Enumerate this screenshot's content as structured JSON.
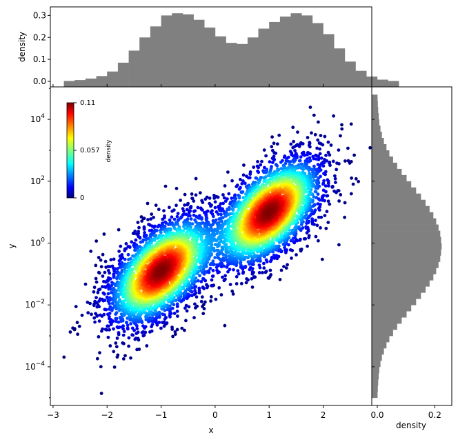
{
  "chart_data": [
    {
      "panel": "joint",
      "type": "scatter",
      "xlabel": "x",
      "ylabel": "y",
      "xlim": [
        -3.05,
        2.9
      ],
      "ylim_log10": [
        -5.25,
        5.05
      ],
      "y_scale": "log",
      "grid": false,
      "x_ticks": [
        "−3",
        "−2",
        "−1",
        "0",
        "1",
        "2"
      ],
      "y_ticks": [
        {
          "base": "10",
          "exp": "4",
          "log": 4
        },
        {
          "base": "10",
          "exp": "2",
          "log": 2
        },
        {
          "base": "10",
          "exp": "0",
          "log": 0
        },
        {
          "base": "10",
          "exp": "−2",
          "log": -2
        },
        {
          "base": "10",
          "exp": "−4",
          "log": -4
        }
      ],
      "clusters": [
        {
          "center_x": -1.0,
          "center_log10_y": -0.9,
          "sd_x": 0.5,
          "sd_log10_y": 0.9,
          "points": 3200
        },
        {
          "center_x": 1.0,
          "center_log10_y": 1.0,
          "sd_x": 0.5,
          "sd_log10_y": 0.9,
          "points": 3200
        }
      ],
      "colormap": "jet",
      "colorbar": {
        "title": "density",
        "ticks": [
          "0.11",
          "0.057",
          "0"
        ],
        "range": [
          0,
          0.11
        ]
      }
    },
    {
      "panel": "x-marginal",
      "type": "bar",
      "ylabel": "density",
      "ylim": [
        0,
        0.32
      ],
      "y_ticks": [
        "0.0",
        "0.1",
        "0.2",
        "0.3"
      ],
      "bin_start": -2.8,
      "bin_width": 0.2,
      "values": [
        0.002,
        0.006,
        0.013,
        0.024,
        0.045,
        0.085,
        0.14,
        0.2,
        0.25,
        0.3,
        0.31,
        0.305,
        0.28,
        0.245,
        0.205,
        0.175,
        0.17,
        0.2,
        0.24,
        0.27,
        0.295,
        0.31,
        0.3,
        0.265,
        0.215,
        0.15,
        0.09,
        0.048,
        0.022,
        0.008,
        0.002
      ]
    },
    {
      "panel": "y-marginal",
      "type": "bar",
      "orientation": "horizontal",
      "xlabel": "density",
      "xlim": [
        0,
        0.24
      ],
      "x_ticks": [
        "0.0",
        "0.2"
      ],
      "bin_start_log10": -5.0,
      "bin_width_log10": 0.2,
      "values": [
        0.001,
        0.002,
        0.003,
        0.005,
        0.007,
        0.011,
        0.016,
        0.023,
        0.032,
        0.042,
        0.055,
        0.069,
        0.085,
        0.102,
        0.118,
        0.135,
        0.152,
        0.168,
        0.182,
        0.195,
        0.205,
        0.213,
        0.219,
        0.222,
        0.224,
        0.222,
        0.219,
        0.213,
        0.205,
        0.195,
        0.182,
        0.168,
        0.152,
        0.135,
        0.118,
        0.102,
        0.085,
        0.069,
        0.055,
        0.042,
        0.032,
        0.023,
        0.016,
        0.011,
        0.007,
        0.005,
        0.003,
        0.002,
        0.001
      ],
      "color": "#808080"
    }
  ]
}
